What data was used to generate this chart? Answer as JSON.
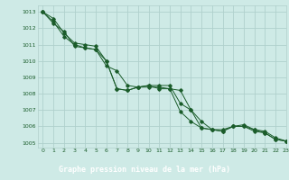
{
  "title": "Graphe pression niveau de la mer (hPa)",
  "bg_color": "#ceeae6",
  "grid_color": "#b0d0cc",
  "line_color": "#1a5c2a",
  "title_bg": "#2a6e3a",
  "title_fg": "#ffffff",
  "xlim": [
    -0.5,
    23
  ],
  "ylim": [
    1004.7,
    1013.4
  ],
  "yticks": [
    1005,
    1006,
    1007,
    1008,
    1009,
    1010,
    1011,
    1012,
    1013
  ],
  "xticks": [
    0,
    1,
    2,
    3,
    4,
    5,
    6,
    7,
    8,
    9,
    10,
    11,
    12,
    13,
    14,
    15,
    16,
    17,
    18,
    19,
    20,
    21,
    22,
    23
  ],
  "series": [
    [
      1013.0,
      1012.6,
      1011.7,
      1011.1,
      1011.0,
      1010.9,
      1010.0,
      1008.3,
      1008.2,
      1008.4,
      1008.5,
      1008.5,
      1008.5,
      1007.4,
      1007.0,
      1005.9,
      1005.8,
      1005.7,
      1006.0,
      1006.1,
      1005.8,
      1005.7,
      1005.3,
      1005.1
    ],
    [
      1013.0,
      1012.4,
      1011.5,
      1011.0,
      1010.8,
      1010.7,
      1009.7,
      1009.4,
      1008.5,
      1008.4,
      1008.4,
      1008.4,
      1008.3,
      1006.9,
      1006.3,
      1005.9,
      1005.8,
      1005.7,
      1006.0,
      1006.0,
      1005.8,
      1005.6,
      1005.2,
      1005.1
    ],
    [
      1013.0,
      1012.3,
      1011.8,
      1010.9,
      1010.8,
      1010.7,
      1010.0,
      1008.3,
      1008.2,
      1008.4,
      1008.5,
      1008.3,
      1008.3,
      1008.2,
      1007.0,
      1006.3,
      1005.8,
      1005.8,
      1006.0,
      1006.0,
      1005.7,
      1005.6,
      1005.2,
      1005.1
    ]
  ]
}
